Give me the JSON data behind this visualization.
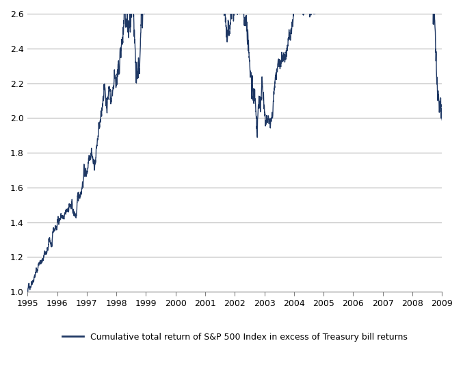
{
  "xlim": [
    1995.0,
    2009.0
  ],
  "ylim": [
    1.0,
    2.6
  ],
  "yticks": [
    1.0,
    1.2,
    1.4,
    1.6,
    1.8,
    2.0,
    2.2,
    2.4,
    2.6
  ],
  "xticks": [
    1995,
    1996,
    1997,
    1998,
    1999,
    2000,
    2001,
    2002,
    2003,
    2004,
    2005,
    2006,
    2007,
    2008,
    2009
  ],
  "line_color": "#1f3864",
  "line_width": 1.0,
  "background_color": "#ffffff",
  "grid_color": "#b0b0b0",
  "legend_line_color": "#1f3864",
  "legend_text": "Cumulative total return of S&P 500 Index in excess of Treasury bill returns",
  "monthly_returns": [
    0.0243,
    0.0371,
    0.0278,
    0.0286,
    0.036,
    0.0231,
    0.0324,
    0.0212,
    0.0413,
    -0.0051,
    0.0418,
    0.0162,
    0.034,
    0.007,
    0.0096,
    0.0136,
    0.0256,
    0.0048,
    -0.0452,
    0.0192,
    0.056,
    0.0264,
    0.0756,
    -0.0198,
    0.062,
    0.0068,
    -0.0404,
    0.0594,
    0.0609,
    0.0434,
    0.079,
    -0.0568,
    0.0536,
    -0.0342,
    0.0456,
    0.0173,
    0.011,
    0.0709,
    0.0497,
    0.009,
    -0.0173,
    0.0398,
    -0.0109,
    -0.1458,
    0.064,
    0.081,
    0.0601,
    0.0568,
    0.0413,
    -0.0317,
    0.0396,
    0.0376,
    -0.0253,
    0.0553,
    -0.0317,
    -0.006,
    -0.0274,
    0.0633,
    0.0199,
    0.0574,
    -0.0502,
    -0.02,
    0.0967,
    -0.03,
    -0.0218,
    0.0237,
    -0.0163,
    0.0618,
    -0.0527,
    -0.0049,
    -0.0801,
    0.0048,
    0.0346,
    -0.0917,
    -0.0643,
    0.0768,
    0.0067,
    -0.025,
    -0.0097,
    -0.0641,
    -0.0808,
    0.0187,
    0.0759,
    0.0076,
    -0.0151,
    -0.0196,
    0.0376,
    -0.0614,
    -0.0088,
    -0.0726,
    -0.079,
    0.0056,
    -0.1097,
    0.0863,
    0.0571,
    -0.0598,
    -0.0274,
    -0.017,
    0.0084,
    0.0812,
    0.0508,
    0.0122,
    0.0162,
    0.0179,
    -0.0099,
    0.0551,
    0.0071,
    0.0503,
    0.0173,
    0.0128,
    -0.0161,
    -0.0157,
    0.0121,
    0.018,
    -0.0343,
    0.0022,
    0.0094,
    0.0144,
    0.0386,
    0.0325,
    -0.0253,
    0.0188,
    -0.0191,
    -0.0198,
    0.03,
    0.0,
    0.0362,
    -0.0112,
    0.007,
    -0.0168,
    0.035,
    0.0003,
    0.0256,
    -0.0196,
    0.0112,
    0.0119,
    -0.0299,
    0.0001,
    -0.0315,
    0.0213,
    0.0246,
    0.0316,
    0.0187,
    0.0137,
    0.0151,
    -0.022,
    0.01,
    0.0433,
    0.0329,
    -0.0178,
    -0.0332,
    0.0129,
    0.0358,
    0.015,
    -0.0439,
    -0.0086,
    -0.0601,
    -0.0349,
    -0.0059,
    0.0473,
    0.0131,
    -0.0856,
    -0.0099,
    0.0145,
    -0.0916,
    -0.1687,
    -0.0741,
    0.0105,
    -0.0843
  ]
}
